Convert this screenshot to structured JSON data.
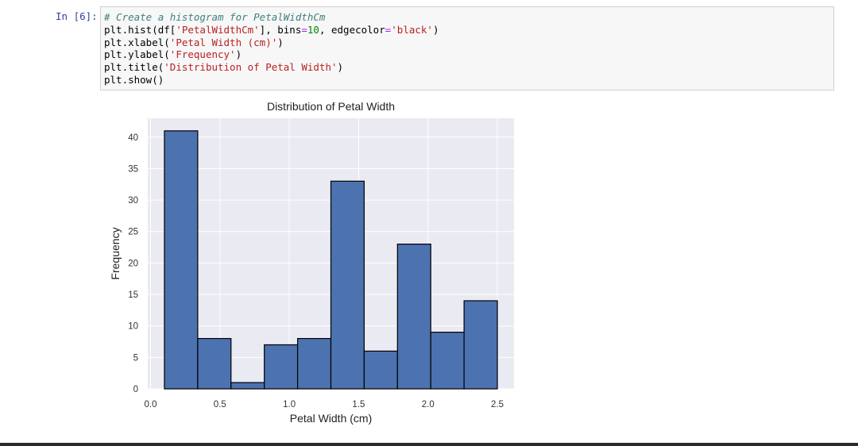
{
  "cell": {
    "prompt": "In [6]:",
    "code_lines": [
      [
        {
          "t": "# Create a histogram for PetalWidthCm",
          "c": "comment"
        }
      ],
      [
        {
          "t": "plt.hist(df[",
          "c": "name"
        },
        {
          "t": "'PetalWidthCm'",
          "c": "string"
        },
        {
          "t": "], bins",
          "c": "name"
        },
        {
          "t": "=",
          "c": "op"
        },
        {
          "t": "10",
          "c": "num"
        },
        {
          "t": ", edgecolor",
          "c": "name"
        },
        {
          "t": "=",
          "c": "op"
        },
        {
          "t": "'black'",
          "c": "string"
        },
        {
          "t": ")",
          "c": "name"
        }
      ],
      [
        {
          "t": "plt.xlabel(",
          "c": "name"
        },
        {
          "t": "'Petal Width (cm)'",
          "c": "string"
        },
        {
          "t": ")",
          "c": "name"
        }
      ],
      [
        {
          "t": "plt.ylabel(",
          "c": "name"
        },
        {
          "t": "'Frequency'",
          "c": "string"
        },
        {
          "t": ")",
          "c": "name"
        }
      ],
      [
        {
          "t": "plt.title(",
          "c": "name"
        },
        {
          "t": "'Distribution of Petal Width'",
          "c": "string"
        },
        {
          "t": ")",
          "c": "name"
        }
      ],
      [
        {
          "t": "plt.show()",
          "c": "name"
        }
      ]
    ]
  },
  "chart_data": {
    "type": "bar",
    "title": "Distribution of Petal Width",
    "xlabel": "Petal Width (cm)",
    "ylabel": "Frequency",
    "bin_edges": [
      0.1,
      0.34,
      0.58,
      0.82,
      1.06,
      1.3,
      1.54,
      1.78,
      2.02,
      2.26,
      2.5
    ],
    "values": [
      41,
      8,
      1,
      7,
      8,
      33,
      6,
      23,
      9,
      14
    ],
    "xlim": [
      -0.02,
      2.62
    ],
    "ylim": [
      0,
      43
    ],
    "xticks": [
      0.0,
      0.5,
      1.0,
      1.5,
      2.0,
      2.5
    ],
    "xtick_labels": [
      "0.0",
      "0.5",
      "1.0",
      "1.5",
      "2.0",
      "2.5"
    ],
    "yticks": [
      0,
      5,
      10,
      15,
      20,
      25,
      30,
      35,
      40
    ],
    "ytick_labels": [
      "0",
      "5",
      "10",
      "15",
      "20",
      "25",
      "30",
      "35",
      "40"
    ],
    "grid": true,
    "colors": {
      "bar": "#4c72b0",
      "edge": "#000000",
      "background": "#eaeaf2",
      "grid": "#ffffff"
    }
  }
}
